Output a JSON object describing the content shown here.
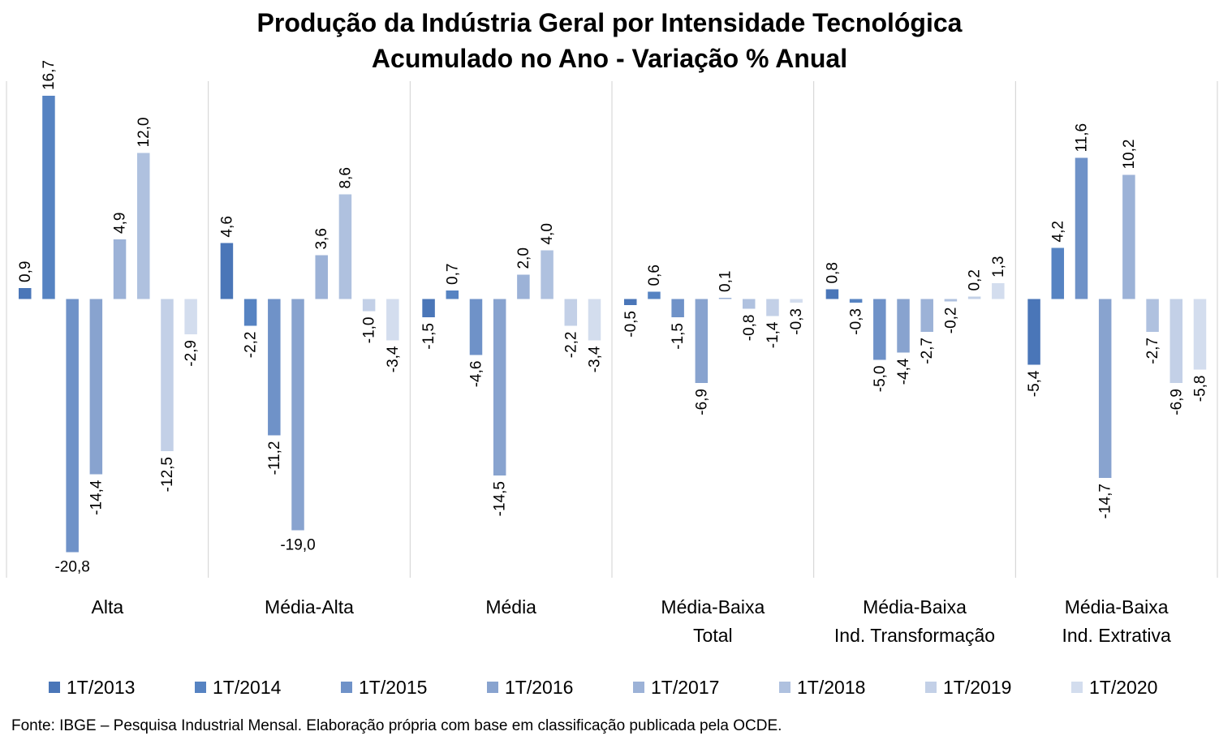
{
  "chart_data": {
    "type": "bar",
    "title": "Produção da Indústria Geral por Intensidade Tecnológica",
    "subtitle": "Acumulado no Ano - Variação % Anual",
    "categories": [
      [
        "Alta"
      ],
      [
        "Média-Alta"
      ],
      [
        "Média"
      ],
      [
        "Média-Baixa",
        "Total"
      ],
      [
        "Média-Baixa",
        "Ind. Transformação"
      ],
      [
        "Média-Baixa",
        "Ind. Extrativa"
      ]
    ],
    "series": [
      {
        "name": "1T/2013",
        "color": "#4a76b8",
        "values": [
          0.9,
          4.6,
          -1.5,
          -0.5,
          0.8,
          -5.4
        ]
      },
      {
        "name": "1T/2014",
        "color": "#5683c2",
        "values": [
          16.7,
          -2.2,
          0.7,
          0.6,
          -0.3,
          4.2
        ]
      },
      {
        "name": "1T/2015",
        "color": "#6f92c8",
        "values": [
          -20.8,
          -11.2,
          -4.6,
          -1.5,
          -5.0,
          11.6
        ]
      },
      {
        "name": "1T/2016",
        "color": "#88a3cf",
        "values": [
          -14.4,
          -19.0,
          -14.5,
          -6.9,
          -4.4,
          -14.7
        ]
      },
      {
        "name": "1T/2017",
        "color": "#9cb2d7",
        "values": [
          4.9,
          3.6,
          2.0,
          0.1,
          -2.7,
          10.2
        ]
      },
      {
        "name": "1T/2018",
        "color": "#afc1df",
        "values": [
          12.0,
          8.6,
          4.0,
          -0.8,
          -0.2,
          -2.7
        ]
      },
      {
        "name": "1T/2019",
        "color": "#c3d0e7",
        "values": [
          -12.5,
          -1.0,
          -2.2,
          -1.4,
          0.2,
          -6.9
        ]
      },
      {
        "name": "1T/2020",
        "color": "#d3ddee",
        "values": [
          -2.9,
          -3.4,
          -3.4,
          -0.3,
          1.3,
          -5.8
        ]
      }
    ],
    "ylim": [
      -22.9,
      17.9
    ],
    "grid": false,
    "legend": "bottom",
    "decimal_separator": ","
  },
  "source": "Fonte: IBGE – Pesquisa Industrial Mensal. Elaboração própria com base em classificação publicada pela OCDE."
}
